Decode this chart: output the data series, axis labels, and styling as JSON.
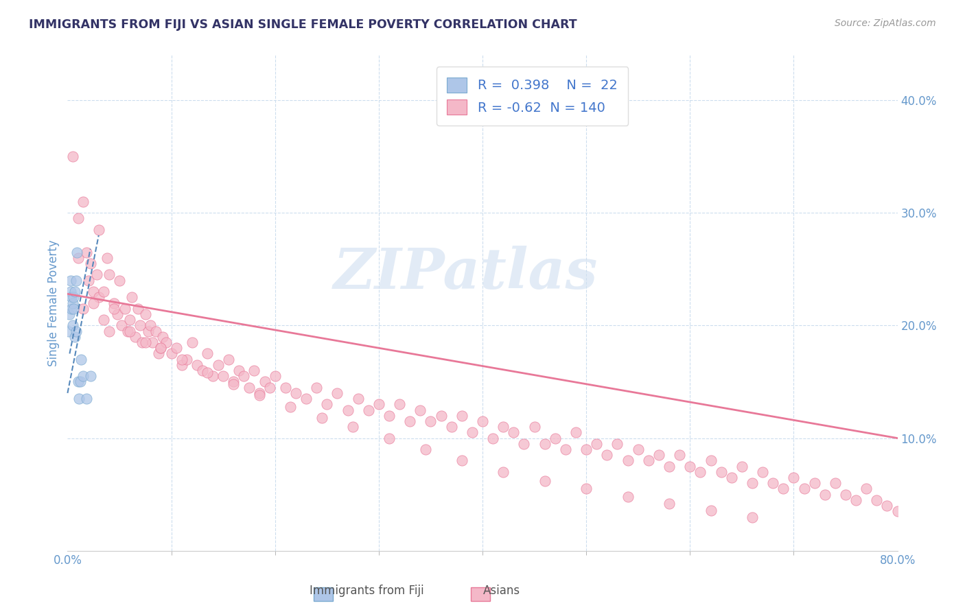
{
  "title": "IMMIGRANTS FROM FIJI VS ASIAN SINGLE FEMALE POVERTY CORRELATION CHART",
  "source": "Source: ZipAtlas.com",
  "ylabel": "Single Female Poverty",
  "xlim": [
    0.0,
    0.8
  ],
  "ylim": [
    0.0,
    0.44
  ],
  "xtick_left": "0.0%",
  "xtick_right": "80.0%",
  "ytick_labels_right": [
    "10.0%",
    "20.0%",
    "30.0%",
    "40.0%"
  ],
  "yticks_right": [
    0.1,
    0.2,
    0.3,
    0.4
  ],
  "fiji_color": "#aec6e8",
  "asian_color": "#f4b8c8",
  "fiji_edge_color": "#7aaad0",
  "asian_edge_color": "#e87898",
  "fiji_line_color": "#5588bb",
  "asian_line_color": "#e87898",
  "fiji_R": 0.398,
  "fiji_N": 22,
  "asian_R": -0.62,
  "asian_N": 140,
  "title_color": "#333366",
  "tick_color": "#6699cc",
  "watermark": "ZIPatlas",
  "watermark_color": "#d0dff0",
  "legend_R_color": "#4477cc",
  "fiji_scatter_x": [
    0.001,
    0.002,
    0.003,
    0.003,
    0.004,
    0.004,
    0.005,
    0.005,
    0.006,
    0.006,
    0.007,
    0.007,
    0.008,
    0.008,
    0.009,
    0.01,
    0.011,
    0.012,
    0.013,
    0.015,
    0.018,
    0.022
  ],
  "fiji_scatter_y": [
    0.195,
    0.21,
    0.23,
    0.24,
    0.215,
    0.225,
    0.22,
    0.2,
    0.215,
    0.225,
    0.23,
    0.19,
    0.24,
    0.195,
    0.265,
    0.15,
    0.135,
    0.15,
    0.17,
    0.155,
    0.135,
    0.155
  ],
  "asian_scatter_x": [
    0.005,
    0.01,
    0.01,
    0.015,
    0.018,
    0.02,
    0.022,
    0.025,
    0.028,
    0.03,
    0.03,
    0.035,
    0.038,
    0.04,
    0.04,
    0.045,
    0.048,
    0.05,
    0.052,
    0.055,
    0.058,
    0.06,
    0.062,
    0.065,
    0.068,
    0.07,
    0.072,
    0.075,
    0.078,
    0.08,
    0.082,
    0.085,
    0.088,
    0.09,
    0.092,
    0.095,
    0.1,
    0.105,
    0.11,
    0.115,
    0.12,
    0.125,
    0.13,
    0.135,
    0.14,
    0.145,
    0.15,
    0.155,
    0.16,
    0.165,
    0.17,
    0.175,
    0.18,
    0.185,
    0.19,
    0.195,
    0.2,
    0.21,
    0.22,
    0.23,
    0.24,
    0.25,
    0.26,
    0.27,
    0.28,
    0.29,
    0.3,
    0.31,
    0.32,
    0.33,
    0.34,
    0.35,
    0.36,
    0.37,
    0.38,
    0.39,
    0.4,
    0.41,
    0.42,
    0.43,
    0.44,
    0.45,
    0.46,
    0.47,
    0.48,
    0.49,
    0.5,
    0.51,
    0.52,
    0.53,
    0.54,
    0.55,
    0.56,
    0.57,
    0.58,
    0.59,
    0.6,
    0.61,
    0.62,
    0.63,
    0.64,
    0.65,
    0.66,
    0.67,
    0.68,
    0.69,
    0.7,
    0.71,
    0.72,
    0.73,
    0.74,
    0.75,
    0.76,
    0.77,
    0.78,
    0.79,
    0.8,
    0.015,
    0.025,
    0.035,
    0.045,
    0.06,
    0.075,
    0.09,
    0.11,
    0.135,
    0.16,
    0.185,
    0.215,
    0.245,
    0.275,
    0.31,
    0.345,
    0.38,
    0.42,
    0.46,
    0.5,
    0.54,
    0.58,
    0.62,
    0.66
  ],
  "asian_scatter_y": [
    0.35,
    0.295,
    0.26,
    0.31,
    0.265,
    0.24,
    0.255,
    0.23,
    0.245,
    0.225,
    0.285,
    0.23,
    0.26,
    0.195,
    0.245,
    0.22,
    0.21,
    0.24,
    0.2,
    0.215,
    0.195,
    0.205,
    0.225,
    0.19,
    0.215,
    0.2,
    0.185,
    0.21,
    0.195,
    0.2,
    0.185,
    0.195,
    0.175,
    0.18,
    0.19,
    0.185,
    0.175,
    0.18,
    0.165,
    0.17,
    0.185,
    0.165,
    0.16,
    0.175,
    0.155,
    0.165,
    0.155,
    0.17,
    0.15,
    0.16,
    0.155,
    0.145,
    0.16,
    0.14,
    0.15,
    0.145,
    0.155,
    0.145,
    0.14,
    0.135,
    0.145,
    0.13,
    0.14,
    0.125,
    0.135,
    0.125,
    0.13,
    0.12,
    0.13,
    0.115,
    0.125,
    0.115,
    0.12,
    0.11,
    0.12,
    0.105,
    0.115,
    0.1,
    0.11,
    0.105,
    0.095,
    0.11,
    0.095,
    0.1,
    0.09,
    0.105,
    0.09,
    0.095,
    0.085,
    0.095,
    0.08,
    0.09,
    0.08,
    0.085,
    0.075,
    0.085,
    0.075,
    0.07,
    0.08,
    0.07,
    0.065,
    0.075,
    0.06,
    0.07,
    0.06,
    0.055,
    0.065,
    0.055,
    0.06,
    0.05,
    0.06,
    0.05,
    0.045,
    0.055,
    0.045,
    0.04,
    0.035,
    0.215,
    0.22,
    0.205,
    0.215,
    0.195,
    0.185,
    0.18,
    0.17,
    0.158,
    0.148,
    0.138,
    0.128,
    0.118,
    0.11,
    0.1,
    0.09,
    0.08,
    0.07,
    0.062,
    0.055,
    0.048,
    0.042,
    0.036,
    0.03
  ],
  "fiji_trendline_x": [
    0.002,
    0.022
  ],
  "fiji_trendline_y": [
    0.175,
    0.268
  ],
  "asian_trendline_x": [
    0.0,
    0.8
  ],
  "asian_trendline_y": [
    0.228,
    0.1
  ],
  "grid_yticks": [
    0.1,
    0.2,
    0.3,
    0.4
  ],
  "grid_xticks": [
    0.1,
    0.2,
    0.3,
    0.4,
    0.5,
    0.6,
    0.7
  ]
}
